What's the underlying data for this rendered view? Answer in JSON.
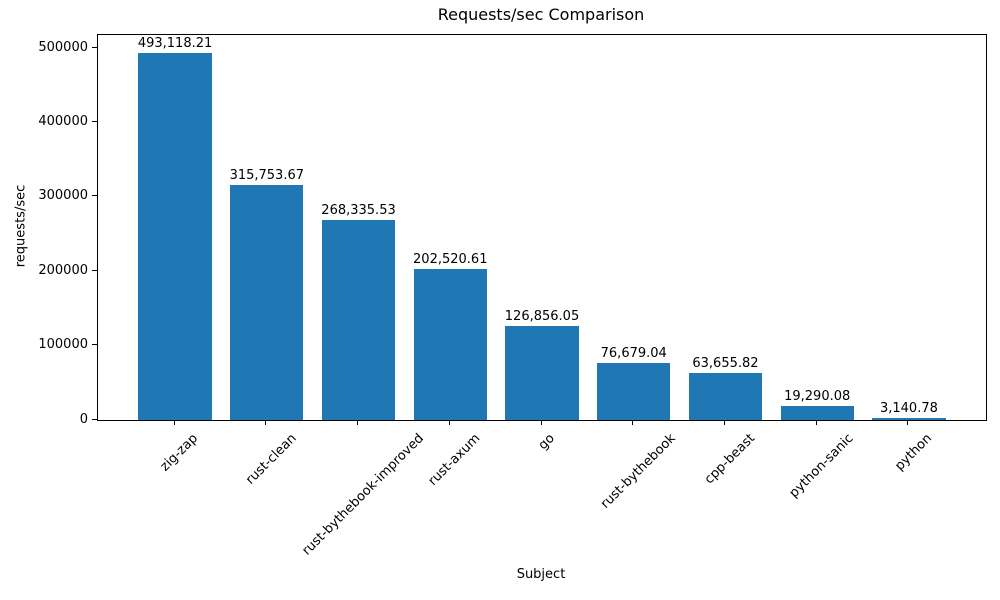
{
  "chart_data": {
    "type": "bar",
    "title": "Requests/sec Comparison",
    "xlabel": "Subject",
    "ylabel": "requests/sec",
    "categories": [
      "zig-zap",
      "rust-clean",
      "rust-bythebook-improved",
      "rust-axum",
      "go",
      "rust-bythebook",
      "cpp-beast",
      "python-sanic",
      "python"
    ],
    "values": [
      493118.21,
      315753.67,
      268335.53,
      202520.61,
      126856.05,
      76679.04,
      63655.82,
      19290.08,
      3140.78
    ],
    "value_labels": [
      "493,118.21",
      "315,753.67",
      "268,335.53",
      "202,520.61",
      "126,856.05",
      "76,679.04",
      "63,655.82",
      "19,290.08",
      "3,140.78"
    ],
    "yticks": [
      0,
      100000,
      200000,
      300000,
      400000,
      500000
    ],
    "ytick_labels": [
      "0",
      "100000",
      "200000",
      "300000",
      "400000",
      "500000"
    ],
    "ylim": [
      0,
      517774
    ],
    "xtick_rotation": 45,
    "grid": false,
    "legend": "none",
    "bar_color": "#1f77b4",
    "axis_color": "#000000",
    "text_color": "#000000",
    "background_color": "#ffffff"
  }
}
